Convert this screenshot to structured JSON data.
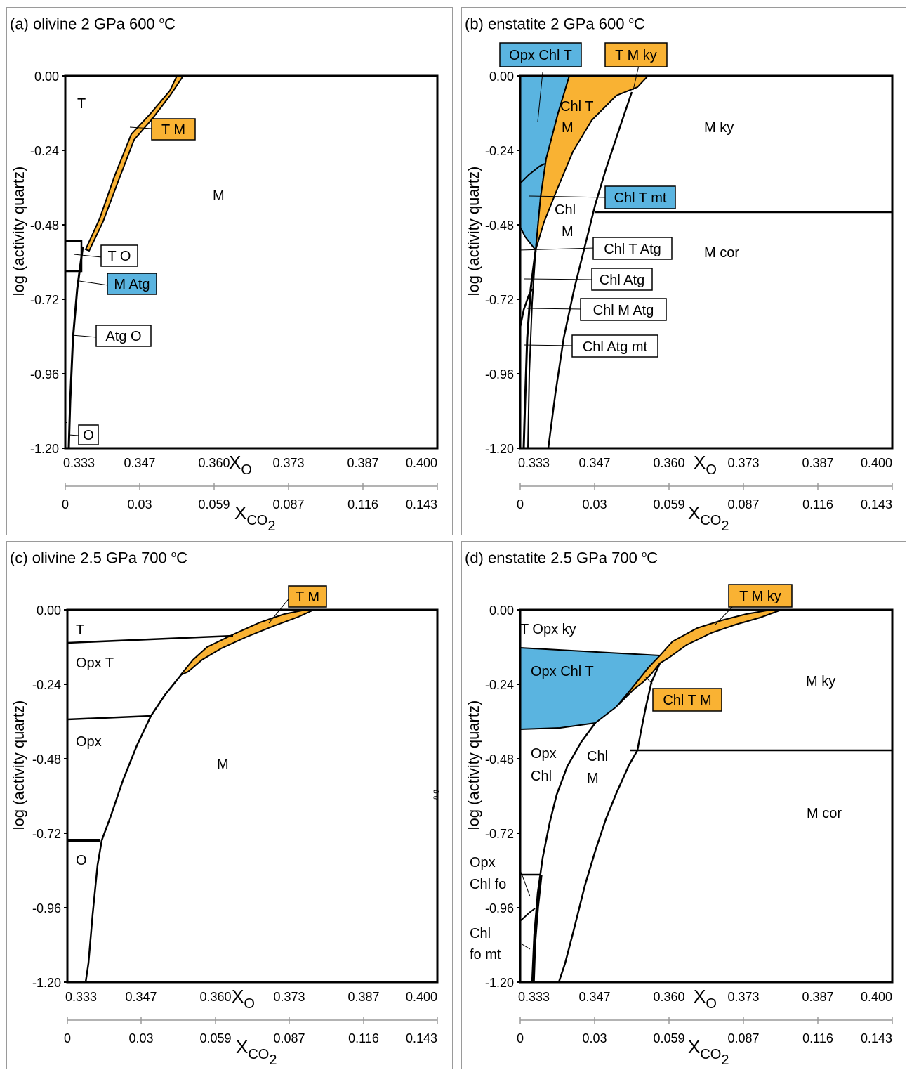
{
  "axis_labels": {
    "y": "log (activity quartz)",
    "x_primary": "X",
    "x_primary_sub": "O",
    "x_secondary": "X",
    "x_secondary_sub": "CO",
    "x_secondary_sub2": "2"
  },
  "y_ticks": [
    "0.00",
    "-0.24",
    "-0.48",
    "-0.72",
    "-0.96",
    "-1.20"
  ],
  "xo_ticks": [
    "0.333",
    "0.347",
    "0.360",
    "0.373",
    "0.387",
    "0.400"
  ],
  "xco2_ticks": [
    "0",
    "0.03",
    "0.059",
    "0.087",
    "0.116",
    "0.143"
  ],
  "colors": {
    "orange": "#f9b233",
    "blue": "#5ab4e0",
    "line": "#000000",
    "frame": "#9a9a9a"
  },
  "panels": [
    {
      "id": "a",
      "title_main": "(a) olivine 2 GPa 600 ",
      "title_deg": "o",
      "title_unit": "C",
      "field_labels": [
        "T",
        "M",
        "T",
        "O"
      ],
      "boxed_labels": [
        {
          "text": "T M",
          "fill": "orange"
        },
        {
          "text": "T O",
          "fill": "white"
        },
        {
          "text": "M Atg",
          "fill": "blue"
        },
        {
          "text": "Atg O",
          "fill": "white"
        },
        {
          "text": "O",
          "fill": "white"
        }
      ]
    },
    {
      "id": "b",
      "title_main": "(b) enstatite 2 GPa 600 ",
      "title_deg": "o",
      "title_unit": "C",
      "field_labels": [
        "Chl T",
        "M",
        "M ky",
        "Chl",
        "M",
        "M cor"
      ],
      "boxed_labels": [
        {
          "text": "Opx Chl T",
          "fill": "blue"
        },
        {
          "text": "T M ky",
          "fill": "orange"
        },
        {
          "text": "Chl T mt",
          "fill": "blue"
        },
        {
          "text": "Chl T Atg",
          "fill": "white"
        },
        {
          "text": "Chl Atg",
          "fill": "white"
        },
        {
          "text": "Chl M Atg",
          "fill": "white"
        },
        {
          "text": "Chl Atg mt",
          "fill": "white"
        }
      ]
    },
    {
      "id": "c",
      "title_main": "(c) olivine 2.5 GPa 700 ",
      "title_deg": "o",
      "title_unit": "C",
      "field_labels": [
        "T",
        "Opx T",
        "Opx",
        "M",
        "O",
        "a g"
      ],
      "boxed_labels": [
        {
          "text": "T M",
          "fill": "orange"
        }
      ]
    },
    {
      "id": "d",
      "title_main": "(d) enstatite 2.5 GPa 700 ",
      "title_deg": "o",
      "title_unit": "C",
      "field_labels": [
        "T Opx ky",
        "Opx Chl T",
        "M ky",
        "Opx",
        "Chl",
        "Chl",
        "M",
        "M cor",
        "Opx",
        "Chl fo",
        "Chl",
        "fo mt"
      ],
      "boxed_labels": [
        {
          "text": "T M ky",
          "fill": "orange"
        },
        {
          "text": "Chl T M",
          "fill": "orange"
        }
      ]
    }
  ]
}
